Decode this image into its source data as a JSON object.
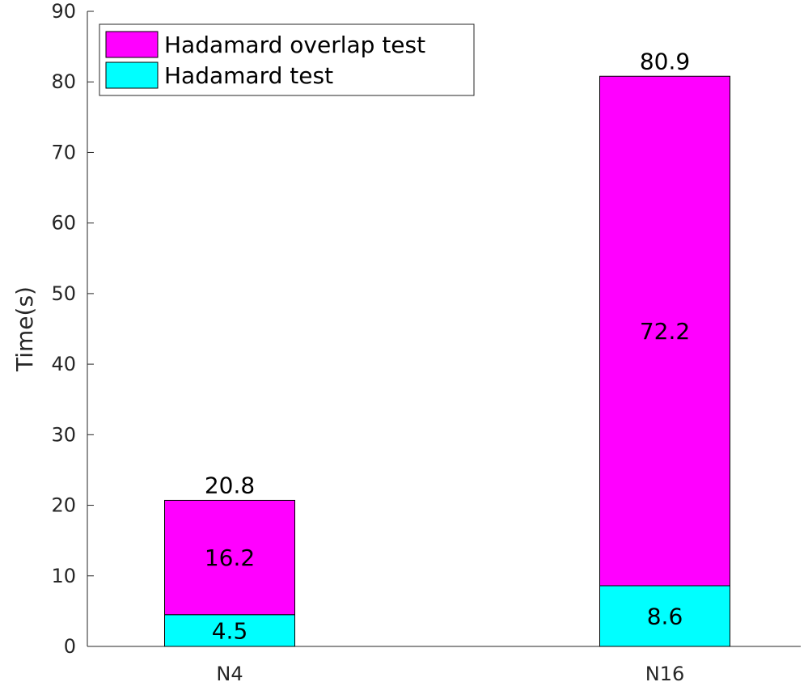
{
  "chart_data": {
    "type": "bar",
    "stacked": true,
    "categories": [
      "N4",
      "N16"
    ],
    "series": [
      {
        "name": "Hadamard test",
        "values": [
          4.5,
          8.6
        ],
        "color": "#00ffff"
      },
      {
        "name": "Hadamard overlap test",
        "values": [
          16.2,
          72.2
        ],
        "color": "#ff00ff"
      }
    ],
    "totals": [
      20.8,
      80.9
    ],
    "segment_labels": [
      [
        "4.5",
        "16.2"
      ],
      [
        "8.6",
        "72.2"
      ]
    ],
    "total_labels": [
      "20.8",
      "80.9"
    ],
    "ylabel": "Time(s)",
    "xlabel": "",
    "title": "",
    "ylim": [
      0,
      90
    ],
    "yticks": [
      0,
      10,
      20,
      30,
      40,
      50,
      60,
      70,
      80,
      90
    ],
    "grid": false,
    "legend": {
      "placement": "top-left",
      "entries": [
        {
          "label": "Hadamard overlap test",
          "color": "#ff00ff"
        },
        {
          "label": "Hadamard test",
          "color": "#00ffff"
        }
      ]
    }
  }
}
